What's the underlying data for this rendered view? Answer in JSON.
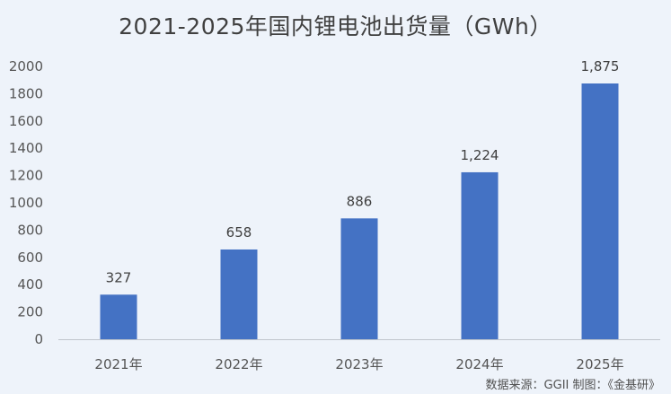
{
  "chart_data": {
    "type": "bar",
    "title": "2021-2025年国内锂电池出货量（GWh）",
    "categories": [
      "2021年",
      "2022年",
      "2023年",
      "2024年",
      "2025年"
    ],
    "values": [
      327,
      658,
      886,
      1224,
      1875
    ],
    "data_labels": [
      "327",
      "658",
      "886",
      "1,224",
      "1,875"
    ],
    "xlabel": "",
    "ylabel": "",
    "ylim": [
      0,
      2000
    ],
    "yticks": [
      0,
      200,
      400,
      600,
      800,
      1000,
      1200,
      1400,
      1600,
      1800,
      2000
    ],
    "grid": false,
    "legend": "none",
    "bar_color": "#4472c4"
  },
  "source_note": "数据来源：GGII   制图：《金基研》"
}
